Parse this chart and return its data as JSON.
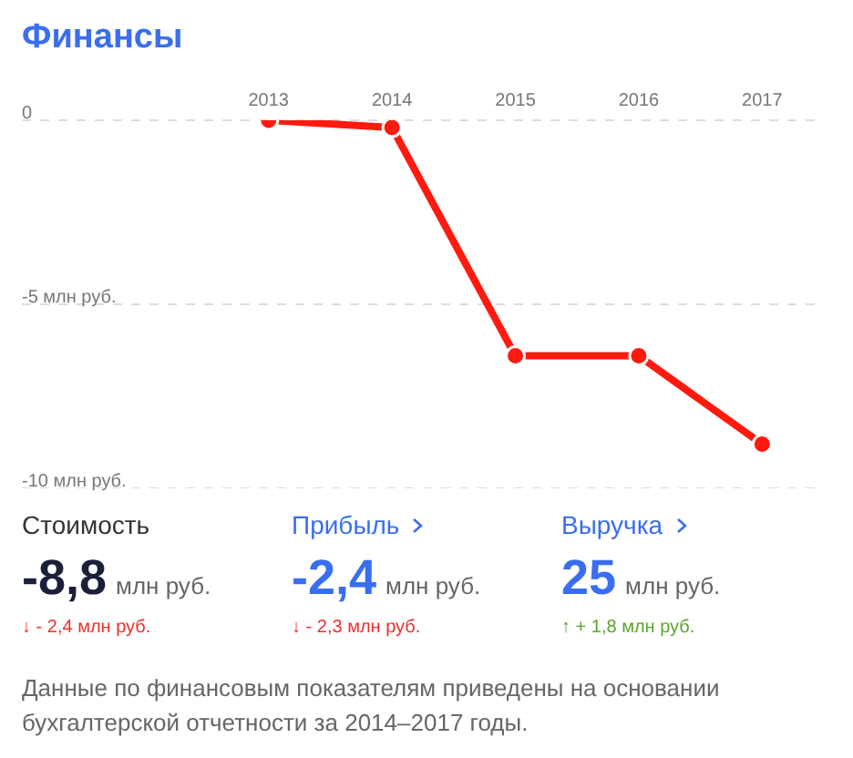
{
  "chart_data": [
    {
      "type": "line",
      "title": "Финансы",
      "categories": [
        "2013",
        "2014",
        "2015",
        "2016",
        "2017"
      ],
      "series": [
        {
          "color": "#ff1a0f",
          "values": [
            0,
            -0.2,
            -6.4,
            -6.4,
            -8.8
          ]
        }
      ],
      "ylim": [
        -10,
        0
      ],
      "yticks": [
        {
          "value": 0,
          "label": "0"
        },
        {
          "value": -5,
          "label": "-5 млн руб."
        },
        {
          "value": -10,
          "label": "-10 млн руб."
        }
      ],
      "grid": "y",
      "marker": "circle",
      "line_style": "solid"
    },
    {
      "type": "other",
      "categories": [
        "Стоимость",
        "Прибыль",
        "Выручка"
      ],
      "value_labels": [
        "-8,8",
        "-2,4",
        "25"
      ],
      "colors": [
        "#1c1f3a",
        "#3a6ef0",
        "#3a6ef0"
      ],
      "ylabel": "млн руб.",
      "annotations": [
        "↓ - 2,4 млн руб.",
        "↓ - 2,3 млн руб.",
        "↑ + 1,8 млн руб.",
        "Данные по финансовым показателям приведены на основании бухгалтерской отчетности за 2014–2017 годы."
      ]
    }
  ]
}
